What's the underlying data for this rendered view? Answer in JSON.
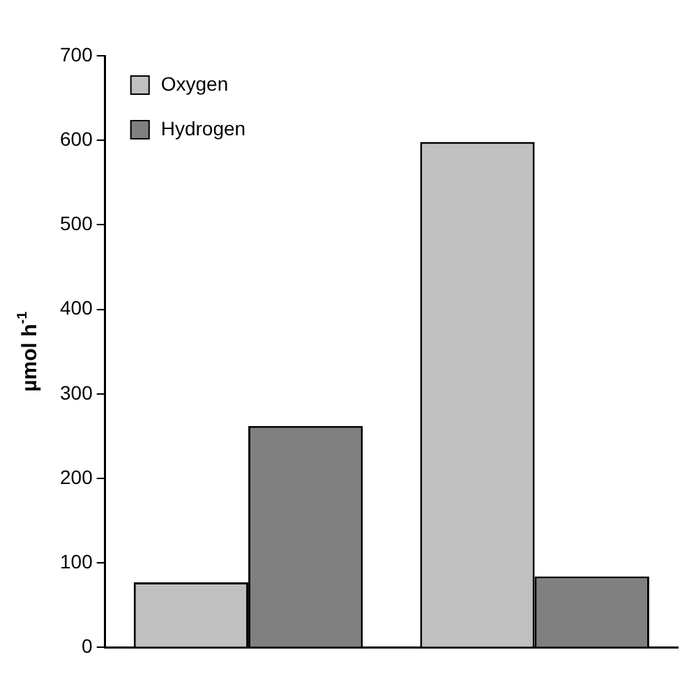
{
  "chart_data": {
    "type": "bar",
    "ylabel": "µmol h$^{-1}$",
    "categories": [
      null,
      null
    ],
    "series": [
      {
        "name": "Oxygen",
        "color": "#c0c0c0",
        "values": [
          77,
          598
        ]
      },
      {
        "name": "Hydrogen",
        "color": "#808080",
        "values": [
          262,
          84
        ]
      }
    ],
    "ylim": [
      0,
      700
    ],
    "yticks": [
      0,
      100,
      200,
      300,
      400,
      500,
      600,
      700
    ],
    "grid": false,
    "legend": "top left"
  }
}
